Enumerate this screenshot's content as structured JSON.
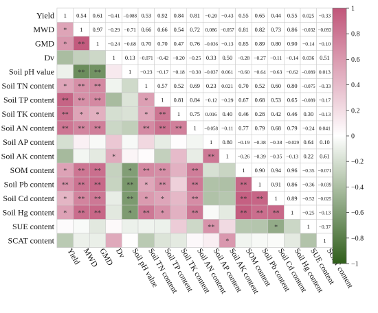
{
  "chart_data": {
    "type": "heatmap",
    "title": "",
    "variables": [
      "Yield",
      "MWD",
      "GMD",
      "Dv",
      "Soil pH value",
      "Soil TN content",
      "Soil TP content",
      "Soil TK content",
      "Soil AN content",
      "Soil AP content",
      "Soil AK content",
      "SOM content",
      "Soil Pb content",
      "Soil Cd content",
      "Soil Hg content",
      "SUE content",
      "SCAT content"
    ],
    "upper_values": [
      [
        1,
        0.54,
        0.61,
        -0.41,
        -0.088,
        0.53,
        0.92,
        0.84,
        0.81,
        -0.2,
        -0.43,
        0.55,
        0.65,
        0.44,
        0.55,
        0.025,
        -0.33
      ],
      [
        null,
        1,
        0.97,
        -0.29,
        -0.71,
        0.66,
        0.66,
        0.54,
        0.72,
        0.086,
        -0.057,
        0.81,
        0.82,
        0.73,
        0.86,
        -0.032,
        -0.093
      ],
      [
        null,
        null,
        1,
        -0.24,
        -0.68,
        0.7,
        0.7,
        0.47,
        0.76,
        -0.036,
        -0.13,
        0.85,
        0.89,
        0.8,
        0.9,
        -0.14,
        -0.1
      ],
      [
        null,
        null,
        null,
        1,
        0.13,
        -0.071,
        -0.42,
        -0.2,
        -0.25,
        0.33,
        0.5,
        -0.28,
        -0.27,
        -0.11,
        -0.14,
        0.036,
        0.51
      ],
      [
        null,
        null,
        null,
        null,
        1,
        -0.23,
        -0.17,
        -0.18,
        -0.3,
        -0.037,
        0.061,
        -0.6,
        -0.64,
        -0.63,
        -0.62,
        -0.089,
        0.013
      ],
      [
        null,
        null,
        null,
        null,
        null,
        1,
        0.57,
        0.52,
        0.69,
        0.23,
        0.021,
        0.7,
        0.52,
        0.6,
        0.8,
        -0.075,
        -0.33
      ],
      [
        null,
        null,
        null,
        null,
        null,
        null,
        1,
        0.81,
        0.84,
        -0.12,
        -0.29,
        0.67,
        0.68,
        0.53,
        0.65,
        -0.089,
        -0.17
      ],
      [
        null,
        null,
        null,
        null,
        null,
        null,
        null,
        1,
        0.75,
        0.016,
        0.4,
        0.46,
        0.28,
        0.42,
        0.46,
        0.3,
        -0.13
      ],
      [
        null,
        null,
        null,
        null,
        null,
        null,
        null,
        null,
        1,
        -0.058,
        -0.11,
        0.77,
        0.79,
        0.68,
        0.79,
        -0.24,
        0.041
      ],
      [
        null,
        null,
        null,
        null,
        null,
        null,
        null,
        null,
        null,
        1,
        0.8,
        -0.19,
        -0.38,
        -0.38,
        -0.029,
        0.64,
        0.1
      ],
      [
        null,
        null,
        null,
        null,
        null,
        null,
        null,
        null,
        null,
        null,
        1,
        -0.26,
        -0.39,
        -0.35,
        -0.13,
        0.22,
        0.61
      ],
      [
        null,
        null,
        null,
        null,
        null,
        null,
        null,
        null,
        null,
        null,
        null,
        1,
        0.9,
        0.94,
        0.96,
        -0.35,
        -0.071
      ],
      [
        null,
        null,
        null,
        null,
        null,
        null,
        null,
        null,
        null,
        null,
        null,
        null,
        1,
        0.91,
        0.86,
        -0.36,
        -0.039
      ],
      [
        null,
        null,
        null,
        null,
        null,
        null,
        null,
        null,
        null,
        null,
        null,
        null,
        null,
        1,
        0.89,
        -0.52,
        -0.025
      ],
      [
        null,
        null,
        null,
        null,
        null,
        null,
        null,
        null,
        null,
        null,
        null,
        null,
        null,
        null,
        1,
        -0.25,
        -0.13
      ],
      [
        null,
        null,
        null,
        null,
        null,
        null,
        null,
        null,
        null,
        null,
        null,
        null,
        null,
        null,
        null,
        1,
        -0.37
      ],
      [
        null,
        null,
        null,
        null,
        null,
        null,
        null,
        null,
        null,
        null,
        null,
        null,
        null,
        null,
        null,
        null,
        1
      ]
    ],
    "significance": [
      [
        "",
        "",
        "",
        "",
        "",
        "",
        "",
        "",
        "",
        "",
        "",
        "",
        "",
        "",
        "",
        "",
        ""
      ],
      [
        "*",
        "",
        "",
        "",
        "",
        "",
        "",
        "",
        "",
        "",
        "",
        "",
        "",
        "",
        "",
        "",
        ""
      ],
      [
        "*",
        "**",
        "",
        "",
        "",
        "",
        "",
        "",
        "",
        "",
        "",
        "",
        "",
        "",
        "",
        "",
        ""
      ],
      [
        "",
        "",
        "",
        "",
        "",
        "",
        "",
        "",
        "",
        "",
        "",
        "",
        "",
        "",
        "",
        "",
        ""
      ],
      [
        "",
        "**",
        "**",
        "",
        "",
        "",
        "",
        "",
        "",
        "",
        "",
        "",
        "",
        "",
        "",
        "",
        ""
      ],
      [
        "*",
        "**",
        "**",
        "",
        "",
        "",
        "",
        "",
        "",
        "",
        "",
        "",
        "",
        "",
        "",
        "",
        ""
      ],
      [
        "**",
        "**",
        "**",
        "",
        "",
        "*",
        "",
        "",
        "",
        "",
        "",
        "",
        "",
        "",
        "",
        "",
        ""
      ],
      [
        "**",
        "*",
        "*",
        "",
        "",
        "*",
        "**",
        "",
        "",
        "",
        "",
        "",
        "",
        "",
        "",
        "",
        ""
      ],
      [
        "**",
        "**",
        "**",
        "",
        "",
        "**",
        "**",
        "**",
        "",
        "",
        "",
        "",
        "",
        "",
        "",
        "",
        ""
      ],
      [
        "",
        "",
        "",
        "",
        "",
        "",
        "",
        "",
        "",
        "",
        "",
        "",
        "",
        "",
        "",
        "",
        ""
      ],
      [
        "",
        "",
        "",
        "*",
        "",
        "",
        "",
        "",
        "",
        "**",
        "",
        "",
        "",
        "",
        "",
        "",
        ""
      ],
      [
        "*",
        "**",
        "**",
        "",
        "*",
        "**",
        "**",
        "",
        "**",
        "",
        "",
        "",
        "",
        "",
        "",
        "",
        ""
      ],
      [
        "**",
        "**",
        "**",
        "",
        "**",
        "*",
        "**",
        "",
        "**",
        "",
        "",
        "**",
        "",
        "",
        "",
        "",
        ""
      ],
      [
        "*",
        "**",
        "**",
        "",
        "**",
        "*",
        "*",
        "",
        "**",
        "",
        "",
        "**",
        "**",
        "",
        "",
        "",
        ""
      ],
      [
        "*",
        "**",
        "**",
        "",
        "*",
        "**",
        "*",
        "",
        "**",
        "",
        "",
        "**",
        "**",
        "**",
        "",
        "",
        ""
      ],
      [
        "",
        "",
        "",
        "",
        "",
        "",
        "",
        "",
        "",
        "**",
        "",
        "",
        "",
        "*",
        "",
        "",
        ""
      ],
      [
        "",
        "",
        "",
        "",
        "",
        "",
        "",
        "",
        "",
        "",
        "*",
        "",
        "",
        "",
        "",
        "",
        ""
      ]
    ],
    "colorbar": {
      "min": -1,
      "max": 1,
      "ticks": [
        "1",
        "0.8",
        "0.6",
        "0.4",
        "0.2",
        "0",
        "−0.2",
        "−0.4",
        "−0.6",
        "−0.8",
        "−1"
      ],
      "positive_color": "#c1567a",
      "neutral_color": "#ffffff",
      "negative_color": "#2f5e1a"
    }
  }
}
